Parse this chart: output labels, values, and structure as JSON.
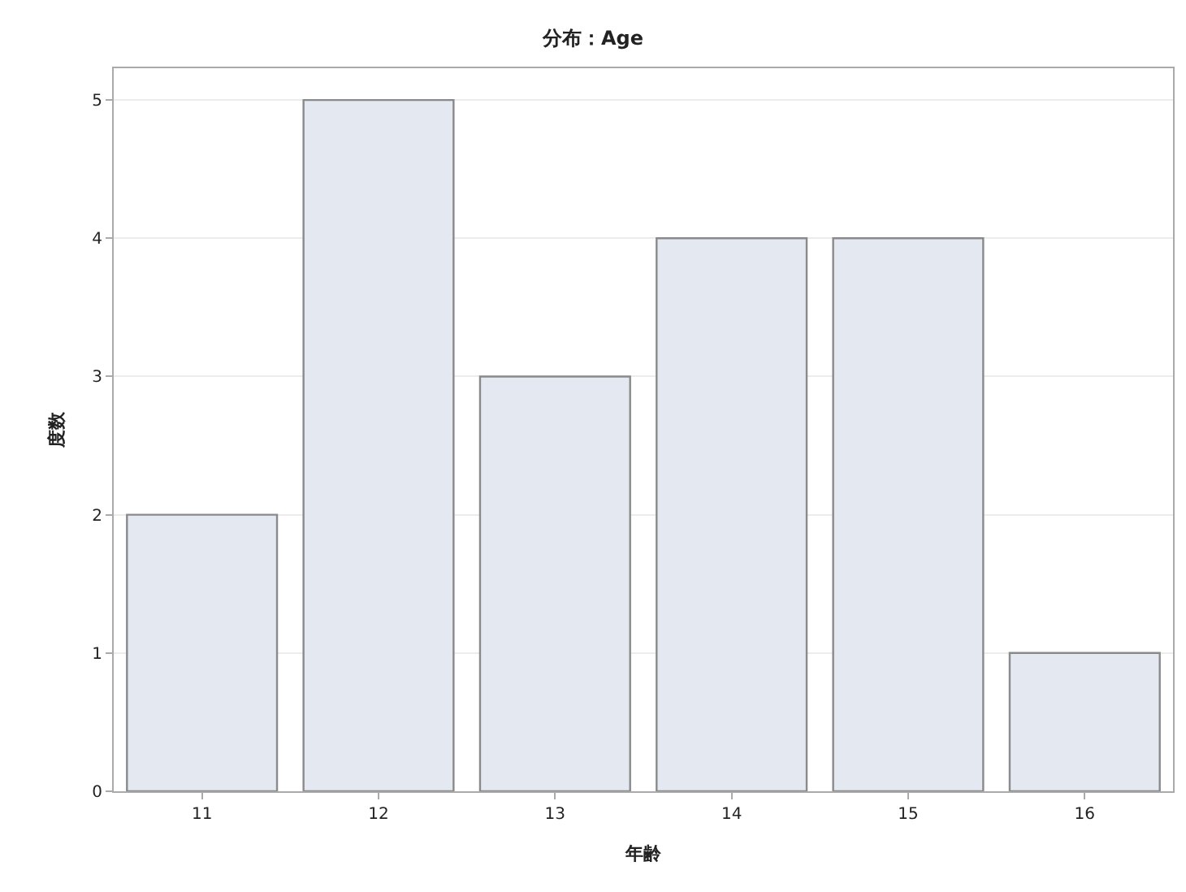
{
  "chart_data": {
    "type": "bar",
    "title": "分布：Age",
    "xlabel": "年齢",
    "ylabel": "度数",
    "categories": [
      "11",
      "12",
      "13",
      "14",
      "15",
      "16"
    ],
    "values": [
      2,
      5,
      3,
      4,
      4,
      1
    ],
    "color": "#e3e8f1",
    "ylim": [
      0,
      5.23
    ],
    "yticks": [
      0,
      1,
      2,
      3,
      4,
      5
    ],
    "grid": "y",
    "legend": false
  }
}
